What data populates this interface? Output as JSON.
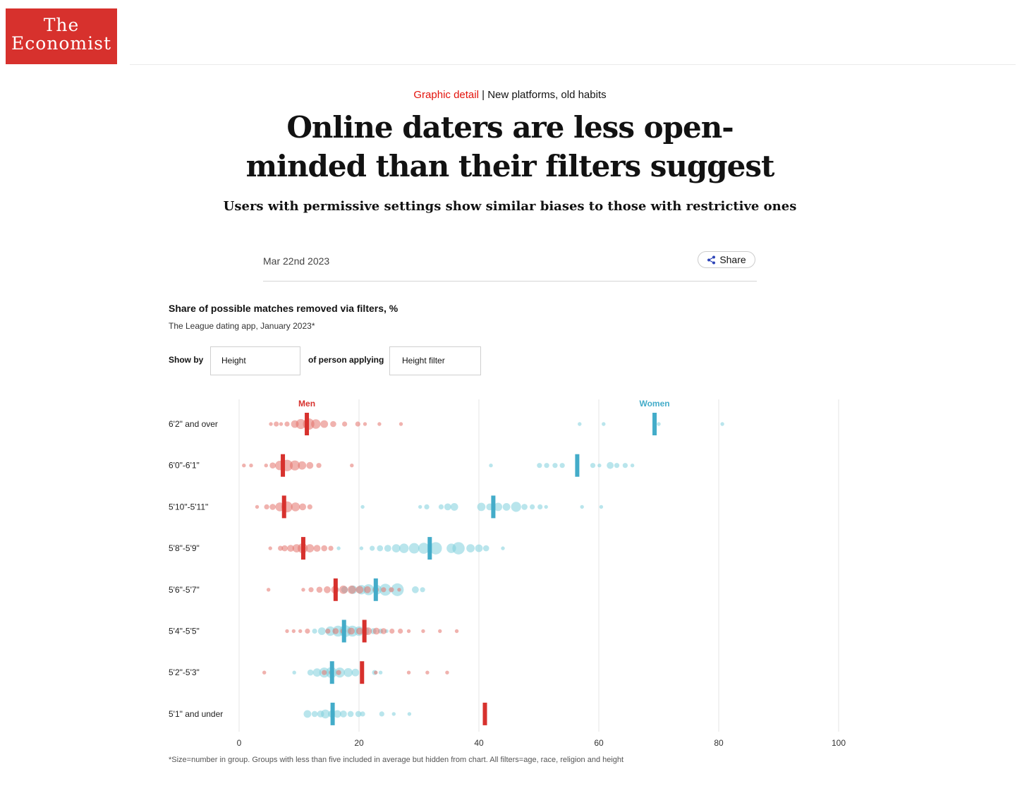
{
  "logo": {
    "line1": "The",
    "line2": "Economist"
  },
  "article": {
    "section": "Graphic detail",
    "separator": "|",
    "fly_title": "New platforms, old habits",
    "headline_line1": "Online daters are less open-",
    "headline_line2": "minded than their filters suggest",
    "subheadline": "Users with permissive settings show similar biases to those with restrictive ones",
    "date": "Mar 22nd 2023",
    "share_label": "Share"
  },
  "controls": {
    "show_by_label": "Show by",
    "show_by_value": "Height",
    "of_person_label": "of person applying",
    "filter_value": "Height filter"
  },
  "chart_data": {
    "type": "scatter",
    "title": "Share of possible matches removed via filters, %",
    "subtitle": "The League dating app, January 2023*",
    "footnote": "*Size=number in group. Groups with less than five included in average but hidden from chart. All filters=age, race, religion and height",
    "x_ticks": [
      "0",
      "20",
      "40",
      "60",
      "80",
      "100"
    ],
    "xlim": [
      0,
      100
    ],
    "grid": true,
    "categories": [
      "6'2\" and over",
      "6'0\"-6'1\"",
      "5'10\"-5'11\"",
      "5'8\"-5'9\"",
      "5'6\"-5'7\"",
      "5'4\"-5'5\"",
      "5'2\"-5'3\"",
      "5'1\" and under"
    ],
    "colors": {
      "men": "#e3736c",
      "men_avg": "#d7312d",
      "women": "#7fcfdc",
      "women_avg": "#43acc9"
    },
    "series": [
      {
        "name": "Men",
        "averages": [
          11.3,
          7.3,
          7.5,
          10.7,
          16.1,
          20.9,
          20.5,
          41.0
        ],
        "points": [
          [
            [
              5.3,
              1
            ],
            [
              6.2,
              2
            ],
            [
              7.0,
              1
            ],
            [
              8.0,
              2
            ],
            [
              9.3,
              5
            ],
            [
              10.3,
              9
            ],
            [
              11.6,
              12
            ],
            [
              12.8,
              8
            ],
            [
              14.2,
              5
            ],
            [
              15.7,
              3
            ],
            [
              17.6,
              2
            ],
            [
              19.8,
              2
            ],
            [
              21.0,
              1
            ],
            [
              23.4,
              1
            ],
            [
              27.0,
              1
            ]
          ],
          [
            [
              0.8,
              1
            ],
            [
              2.0,
              1
            ],
            [
              4.5,
              1
            ],
            [
              5.6,
              3
            ],
            [
              6.8,
              8
            ],
            [
              8.0,
              12
            ],
            [
              9.3,
              9
            ],
            [
              10.5,
              6
            ],
            [
              11.8,
              4
            ],
            [
              13.3,
              2
            ],
            [
              18.8,
              1
            ]
          ],
          [
            [
              3.0,
              1
            ],
            [
              4.6,
              2
            ],
            [
              5.6,
              3
            ],
            [
              6.8,
              7
            ],
            [
              8.0,
              11
            ],
            [
              9.4,
              7
            ],
            [
              10.6,
              4
            ],
            [
              11.8,
              2
            ]
          ],
          [
            [
              5.2,
              1
            ],
            [
              6.9,
              2
            ],
            [
              7.6,
              3
            ],
            [
              8.6,
              4
            ],
            [
              9.6,
              6
            ],
            [
              10.6,
              9
            ],
            [
              11.8,
              6
            ],
            [
              13.0,
              4
            ],
            [
              14.2,
              3
            ],
            [
              15.3,
              2
            ]
          ],
          [
            [
              4.9,
              1
            ],
            [
              10.7,
              1
            ],
            [
              12.0,
              2
            ],
            [
              13.4,
              3
            ],
            [
              14.7,
              4
            ],
            [
              16.0,
              5
            ],
            [
              17.4,
              6
            ],
            [
              18.8,
              6
            ],
            [
              20.1,
              5
            ],
            [
              21.4,
              4
            ],
            [
              22.8,
              3
            ],
            [
              24.1,
              2
            ],
            [
              25.4,
              2
            ],
            [
              26.7,
              1
            ]
          ],
          [
            [
              8.0,
              1
            ],
            [
              9.1,
              1
            ],
            [
              10.2,
              1
            ],
            [
              11.4,
              2
            ],
            [
              14.8,
              2
            ],
            [
              16.1,
              3
            ],
            [
              17.4,
              3
            ],
            [
              18.7,
              4
            ],
            [
              20.1,
              4
            ],
            [
              21.5,
              5
            ],
            [
              22.9,
              4
            ],
            [
              24.1,
              3
            ],
            [
              25.5,
              2
            ],
            [
              26.9,
              2
            ],
            [
              28.3,
              1
            ],
            [
              30.7,
              1
            ],
            [
              33.5,
              1
            ],
            [
              36.3,
              1
            ]
          ],
          [
            [
              4.2,
              1
            ],
            [
              14.2,
              2
            ],
            [
              15.4,
              2
            ],
            [
              16.6,
              2
            ],
            [
              22.8,
              1
            ],
            [
              28.3,
              1
            ],
            [
              31.4,
              1
            ],
            [
              34.7,
              1
            ]
          ],
          []
        ]
      },
      {
        "name": "Women",
        "averages": [
          69.3,
          56.4,
          42.4,
          31.8,
          22.8,
          17.5,
          15.5,
          15.6
        ],
        "points": [
          [
            [
              56.8,
              1
            ],
            [
              60.8,
              1
            ],
            [
              70.0,
              1
            ],
            [
              80.6,
              1
            ]
          ],
          [
            [
              42.0,
              1
            ],
            [
              50.1,
              2
            ],
            [
              51.3,
              2
            ],
            [
              52.7,
              2
            ],
            [
              53.9,
              2
            ],
            [
              59.0,
              2
            ],
            [
              60.1,
              1
            ],
            [
              61.9,
              4
            ],
            [
              63.0,
              2
            ],
            [
              64.4,
              2
            ],
            [
              65.6,
              1
            ]
          ],
          [
            [
              20.6,
              1
            ],
            [
              30.2,
              1
            ],
            [
              31.3,
              2
            ],
            [
              33.7,
              2
            ],
            [
              34.8,
              4
            ],
            [
              35.9,
              5
            ],
            [
              40.4,
              6
            ],
            [
              41.8,
              4
            ],
            [
              43.2,
              6
            ],
            [
              44.6,
              5
            ],
            [
              46.2,
              9
            ],
            [
              47.6,
              3
            ],
            [
              48.9,
              2
            ],
            [
              50.2,
              2
            ],
            [
              51.2,
              1
            ],
            [
              57.2,
              1
            ],
            [
              60.4,
              1
            ]
          ],
          [
            [
              16.6,
              1
            ],
            [
              20.4,
              1
            ],
            [
              22.2,
              2
            ],
            [
              23.5,
              3
            ],
            [
              24.8,
              4
            ],
            [
              26.2,
              6
            ],
            [
              27.5,
              8
            ],
            [
              29.2,
              10
            ],
            [
              30.8,
              11
            ],
            [
              32.8,
              14
            ],
            [
              35.4,
              8
            ],
            [
              36.6,
              14
            ],
            [
              38.6,
              6
            ],
            [
              40.0,
              5
            ],
            [
              41.2,
              3
            ],
            [
              44.0,
              1
            ]
          ],
          [
            [
              16.2,
              2
            ],
            [
              17.6,
              4
            ],
            [
              19.0,
              6
            ],
            [
              20.4,
              8
            ],
            [
              21.6,
              11
            ],
            [
              23.0,
              8
            ],
            [
              24.4,
              13
            ],
            [
              26.4,
              15
            ],
            [
              29.4,
              4
            ],
            [
              30.6,
              2
            ]
          ],
          [
            [
              12.6,
              2
            ],
            [
              13.8,
              5
            ],
            [
              15.2,
              8
            ],
            [
              16.5,
              11
            ],
            [
              17.7,
              13
            ],
            [
              18.9,
              11
            ],
            [
              20.0,
              8
            ],
            [
              21.1,
              5
            ],
            [
              22.4,
              3
            ],
            [
              23.6,
              2
            ],
            [
              24.6,
              1
            ]
          ],
          [
            [
              9.2,
              1
            ],
            [
              11.9,
              3
            ],
            [
              13.0,
              6
            ],
            [
              14.2,
              9
            ],
            [
              15.4,
              11
            ],
            [
              16.8,
              9
            ],
            [
              18.2,
              7
            ],
            [
              19.4,
              5
            ],
            [
              22.6,
              2
            ],
            [
              23.6,
              1
            ]
          ],
          [
            [
              11.4,
              5
            ],
            [
              12.6,
              3
            ],
            [
              13.6,
              4
            ],
            [
              14.4,
              7
            ],
            [
              15.4,
              4
            ],
            [
              16.4,
              5
            ],
            [
              17.4,
              4
            ],
            [
              18.6,
              3
            ],
            [
              19.9,
              3
            ],
            [
              20.6,
              2
            ],
            [
              23.8,
              2
            ],
            [
              25.8,
              1
            ],
            [
              28.4,
              1
            ]
          ]
        ]
      }
    ]
  }
}
